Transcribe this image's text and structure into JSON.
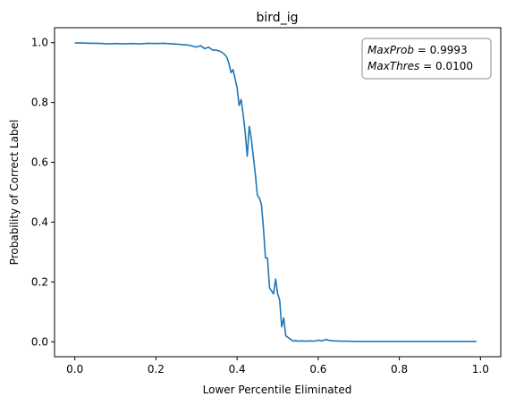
{
  "chart_data": {
    "type": "line",
    "title": "bird_ig",
    "xlabel": "Lower Percentile Eliminated",
    "ylabel": "Probability of Correct Label",
    "xlim": [
      -0.05,
      1.05
    ],
    "ylim": [
      -0.05,
      1.05
    ],
    "xticks": [
      0.0,
      0.2,
      0.4,
      0.6,
      0.8,
      1.0
    ],
    "xtick_labels": [
      "0.0",
      "0.2",
      "0.4",
      "0.6",
      "0.8",
      "1.0"
    ],
    "yticks": [
      0.0,
      0.2,
      0.4,
      0.6,
      0.8,
      1.0
    ],
    "ytick_labels": [
      "0.0",
      "0.2",
      "0.4",
      "0.6",
      "0.8",
      "1.0"
    ],
    "grid": false,
    "line_color": "#1f77b4",
    "annotation": {
      "line1_name": "MaxProb",
      "line1_value": "= 0.9993",
      "line2_name": "MaxThres",
      "line2_value": "= 0.0100",
      "placement": "top-right"
    },
    "series": [
      {
        "x": [
          0.0,
          0.02,
          0.04,
          0.06,
          0.08,
          0.1,
          0.12,
          0.14,
          0.16,
          0.18,
          0.2,
          0.22,
          0.24,
          0.26,
          0.28,
          0.3,
          0.31,
          0.32,
          0.33,
          0.34,
          0.35,
          0.36,
          0.37,
          0.375,
          0.38,
          0.385,
          0.39,
          0.395,
          0.4,
          0.405,
          0.41,
          0.415,
          0.42,
          0.425,
          0.43,
          0.435,
          0.44,
          0.445,
          0.45,
          0.455,
          0.46,
          0.465,
          0.47,
          0.475,
          0.48,
          0.485,
          0.49,
          0.495,
          0.5,
          0.505,
          0.51,
          0.515,
          0.52,
          0.525,
          0.53,
          0.535,
          0.54,
          0.545,
          0.55,
          0.56,
          0.57,
          0.58,
          0.59,
          0.6,
          0.61,
          0.62,
          0.625,
          0.63,
          0.64,
          0.66,
          0.7,
          0.8,
          0.9,
          0.99
        ],
        "y": [
          0.999,
          0.999,
          0.998,
          0.998,
          0.996,
          0.997,
          0.996,
          0.997,
          0.996,
          0.998,
          0.997,
          0.998,
          0.996,
          0.994,
          0.992,
          0.985,
          0.99,
          0.98,
          0.985,
          0.975,
          0.975,
          0.97,
          0.96,
          0.95,
          0.93,
          0.9,
          0.91,
          0.88,
          0.85,
          0.79,
          0.81,
          0.76,
          0.7,
          0.62,
          0.72,
          0.68,
          0.62,
          0.56,
          0.49,
          0.48,
          0.46,
          0.38,
          0.28,
          0.28,
          0.18,
          0.17,
          0.16,
          0.21,
          0.16,
          0.14,
          0.05,
          0.08,
          0.02,
          0.015,
          0.01,
          0.005,
          0.002,
          0.004,
          0.002,
          0.003,
          0.002,
          0.003,
          0.002,
          0.005,
          0.003,
          0.008,
          0.005,
          0.004,
          0.003,
          0.002,
          0.001,
          0.001,
          0.001,
          0.001
        ]
      }
    ]
  }
}
